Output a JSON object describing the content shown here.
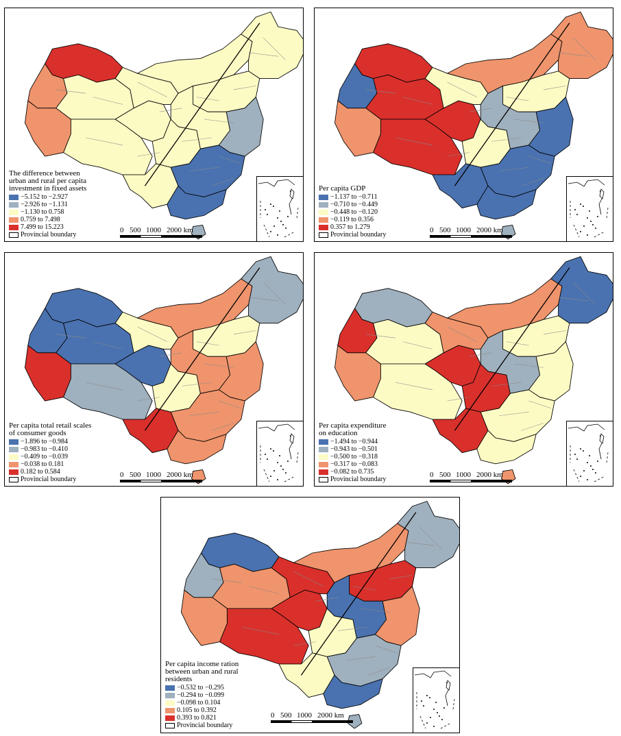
{
  "colors": {
    "c1": "#4a72b0",
    "c2": "#9fb0be",
    "c3": "#fdfbc4",
    "c4": "#ef946c",
    "c5": "#d9302c",
    "boundary": "#000000",
    "cityline": "#8a8a8a"
  },
  "scale": {
    "labels": [
      "0",
      "500",
      "1000",
      "2000 km"
    ]
  },
  "boundary_label": "Provincial boundary",
  "inset_icon": "south-china-sea-inset",
  "maps": [
    {
      "id": "investment",
      "title_lines": [
        "The difference between",
        "urban and rural per capita",
        "investment in fixed assets"
      ],
      "classes": [
        "−5.152 to −2.927",
        "−2.926 to −1.131",
        "−1.130 to 0.758",
        "0.759 to 7.498",
        "7.499 to 15.223"
      ],
      "regions": {
        "xj_west": 4,
        "xj_north": 5,
        "xj_south": 3,
        "qinghai": 3,
        "tibet": 3,
        "tibet_west": 4,
        "neimenggu": 3,
        "northeast": 3,
        "gansu_ningxia": 3,
        "sichuan": 3,
        "yunnan": 3,
        "central": 3,
        "east": 2,
        "southeast": 1,
        "guangdong": 1,
        "hainan": 2,
        "north_china": 3
      }
    },
    {
      "id": "gdp",
      "title_lines": [
        "Per capita GDP"
      ],
      "classes": [
        "−1.137 to −0.711",
        "−0.710 to −0.449",
        "−0.448 to −0.120",
        "−0.119 to 0.356",
        "0.357 to 1.279"
      ],
      "regions": {
        "xj_west": 1,
        "xj_north": 5,
        "xj_south": 5,
        "qinghai": 5,
        "tibet": 5,
        "tibet_west": 4,
        "neimenggu": 4,
        "northeast": 4,
        "gansu_ningxia": 3,
        "sichuan": 3,
        "yunnan": 1,
        "central": 2,
        "east": 1,
        "southeast": 1,
        "guangdong": 1,
        "hainan": 2,
        "north_china": 3
      }
    },
    {
      "id": "retail",
      "title_lines": [
        "Per capita total retail scales",
        "of consumer goods"
      ],
      "classes": [
        "−1.896 to −0.984",
        "−0.983 to −0.410",
        "−0.409 to −0.039",
        "−0.038 to 0.181",
        "0.182 to 0.584"
      ],
      "regions": {
        "xj_west": 1,
        "xj_north": 1,
        "xj_south": 1,
        "qinghai": 1,
        "tibet": 2,
        "tibet_west": 5,
        "neimenggu": 4,
        "northeast": 2,
        "gansu_ningxia": 3,
        "sichuan": 3,
        "yunnan": 5,
        "central": 4,
        "east": 4,
        "southeast": 4,
        "guangdong": 4,
        "hainan": 4,
        "north_china": 3
      }
    },
    {
      "id": "education",
      "title_lines": [
        "Per capita expenditure",
        "on education"
      ],
      "classes": [
        "−1.494 to −0.944",
        "−0.943 to −0.501",
        "−0.500 to −0.318",
        "−0.317 to −0.083",
        "−0.082 to 0.735"
      ],
      "regions": {
        "xj_west": 5,
        "xj_north": 2,
        "xj_south": 3,
        "qinghai": 5,
        "tibet": 3,
        "tibet_west": 4,
        "neimenggu": 4,
        "northeast": 1,
        "gansu_ningxia": 4,
        "sichuan": 5,
        "yunnan": 5,
        "central": 2,
        "east": 3,
        "southeast": 3,
        "guangdong": 3,
        "hainan": 4,
        "north_china": 3
      }
    },
    {
      "id": "income",
      "title_lines": [
        "Per capita income ration",
        "between urban and rural",
        "residents"
      ],
      "classes": [
        "−0.532 to −0.295",
        "−0.294 to −0.099",
        "−0.098 to 0.104",
        "0.105 to 0.392",
        "0.393 to 0.821"
      ],
      "regions": {
        "xj_west": 2,
        "xj_north": 1,
        "xj_south": 4,
        "qinghai": 5,
        "tibet": 5,
        "tibet_west": 4,
        "neimenggu": 4,
        "northeast": 2,
        "gansu_ningxia": 5,
        "sichuan": 3,
        "yunnan": 3,
        "central": 1,
        "east": 4,
        "southeast": 2,
        "guangdong": 1,
        "hainan": 2,
        "north_china": 5
      }
    }
  ]
}
